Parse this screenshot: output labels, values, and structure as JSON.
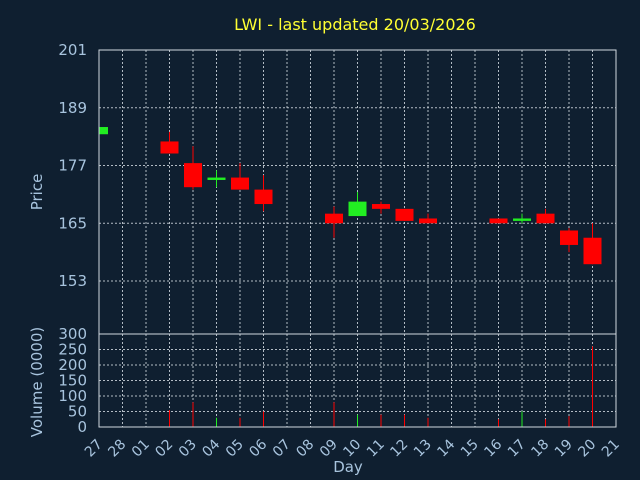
{
  "chart_data": {
    "type": "candlestick",
    "title": "LWI - last updated 20/03/2026",
    "xlabel": "Day",
    "ylabel": "Price",
    "volume_label": "Volume (0000)",
    "categories": [
      "27",
      "28",
      "01",
      "02",
      "03",
      "04",
      "05",
      "06",
      "07",
      "08",
      "09",
      "10",
      "11",
      "12",
      "13",
      "14",
      "15",
      "16",
      "17",
      "18",
      "19",
      "20",
      "21"
    ],
    "price_ticks": [
      153,
      165,
      177,
      189,
      201
    ],
    "price_range": [
      142,
      201
    ],
    "volume_ticks": [
      0,
      50,
      100,
      150,
      200,
      250,
      300
    ],
    "volume_range": [
      0,
      300
    ],
    "grid": true,
    "colors": {
      "up": "#22ee22",
      "down": "#ff0000",
      "background": "#0f1f30",
      "text": "#a8c4de",
      "title": "#ffff33"
    },
    "candles": [
      {
        "day": "27",
        "open": 183.5,
        "close": 185,
        "high": 185,
        "low": 183.5,
        "volume": 0
      },
      {
        "day": "02",
        "open": 182,
        "close": 179.5,
        "high": 184,
        "low": 179.5,
        "volume": 55
      },
      {
        "day": "03",
        "open": 177.5,
        "close": 172.5,
        "high": 181,
        "low": 172,
        "volume": 80
      },
      {
        "day": "04",
        "open": 174,
        "close": 174.5,
        "high": 176,
        "low": 172.5,
        "volume": 30
      },
      {
        "day": "05",
        "open": 174.5,
        "close": 172,
        "high": 177.5,
        "low": 172,
        "volume": 30
      },
      {
        "day": "06",
        "open": 172,
        "close": 169,
        "high": 175,
        "low": 167.5,
        "volume": 50
      },
      {
        "day": "09",
        "open": 167,
        "close": 165,
        "high": 168.5,
        "low": 162,
        "volume": 80
      },
      {
        "day": "10",
        "open": 166.5,
        "close": 169.5,
        "high": 171.5,
        "low": 166.5,
        "volume": 40
      },
      {
        "day": "11",
        "open": 169,
        "close": 168,
        "high": 169.5,
        "low": 167,
        "volume": 40
      },
      {
        "day": "12",
        "open": 168,
        "close": 165.5,
        "high": 168,
        "low": 165.5,
        "volume": 40
      },
      {
        "day": "13",
        "open": 166,
        "close": 165,
        "high": 167,
        "low": 165,
        "volume": 30
      },
      {
        "day": "16",
        "open": 166,
        "close": 165,
        "high": 166,
        "low": 165,
        "volume": 25
      },
      {
        "day": "17",
        "open": 165.5,
        "close": 166,
        "high": 167,
        "low": 165,
        "volume": 50
      },
      {
        "day": "18",
        "open": 167,
        "close": 165,
        "high": 168,
        "low": 165,
        "volume": 25
      },
      {
        "day": "19",
        "open": 163.5,
        "close": 160.5,
        "high": 164,
        "low": 159,
        "volume": 35
      },
      {
        "day": "20",
        "open": 162,
        "close": 156.5,
        "high": 165,
        "low": 156.5,
        "volume": 260
      }
    ]
  }
}
